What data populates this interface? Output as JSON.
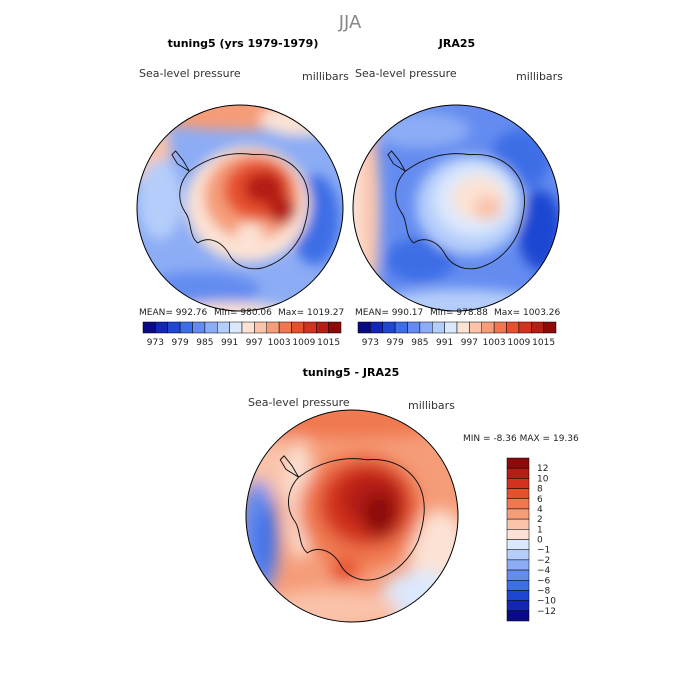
{
  "chart_data": {
    "type": "heatmap",
    "title": "JJA",
    "panels": [
      {
        "id": "model",
        "title": "tuning5 (yrs 1979-1979)",
        "left_label": "Sea-level pressure",
        "right_label": "millibars",
        "stats": {
          "mean_label": "MEAN=",
          "mean": "992.76",
          "min_label": "Min=",
          "min": "980.06",
          "max_label": "Max=",
          "max": "1019.27"
        }
      },
      {
        "id": "obs",
        "title": "JRA25",
        "left_label": "Sea-level pressure",
        "right_label": "millibars",
        "stats": {
          "mean_label": "MEAN=",
          "mean": "990.17",
          "min_label": "Min=",
          "min": "978.88",
          "max_label": "Max=",
          "max": "1003.26"
        }
      },
      {
        "id": "diff",
        "title": "tuning5 - JRA25",
        "left_label": "Sea-level pressure",
        "right_label": "millibars",
        "stats": {
          "min_label": "MIN =",
          "min": "-8.36",
          "max_label": "MAX =",
          "max": "19.36"
        }
      }
    ],
    "colorbar_abs": {
      "orientation": "horizontal",
      "labels": [
        "973",
        "979",
        "985",
        "991",
        "997",
        "1003",
        "1009",
        "1015"
      ],
      "colors": [
        "#0a0a82",
        "#1426b4",
        "#1e46d2",
        "#3c6ee6",
        "#648cf0",
        "#8cacf5",
        "#b4cdfa",
        "#dce8fc",
        "#fce2d4",
        "#fac3aa",
        "#f59c78",
        "#f07850",
        "#e6502d",
        "#d2321e",
        "#b41e14",
        "#8c0a0a"
      ]
    },
    "colorbar_diff": {
      "orientation": "vertical",
      "labels": [
        "12",
        "10",
        "8",
        "6",
        "4",
        "2",
        "1",
        "0",
        "−1",
        "−2",
        "−4",
        "−6",
        "−8",
        "−10",
        "−12"
      ],
      "colors": [
        "#8c0a0a",
        "#b41e14",
        "#d2321e",
        "#e6502d",
        "#f07850",
        "#f59c78",
        "#fac3aa",
        "#fce2d4",
        "#dce8fc",
        "#b4cdfa",
        "#8cacf5",
        "#648cf0",
        "#3c6ee6",
        "#1e46d2",
        "#1426b4",
        "#0a0a82"
      ]
    }
  }
}
